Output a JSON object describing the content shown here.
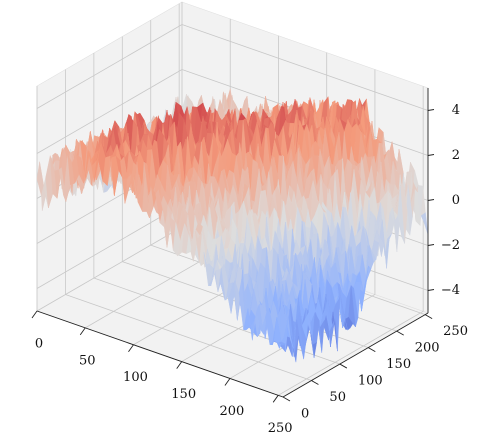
{
  "chart_data": {
    "type": "surface",
    "title": "",
    "xlabel": "",
    "ylabel": "",
    "zlabel": "",
    "colormap": "coolwarm",
    "colors": {
      "low": "#3b4cc0",
      "mid": "#dddddd",
      "high": "#b40426",
      "pane": "#f2f2f2",
      "grid": "#c8c8c8"
    },
    "grid": true,
    "x_range": [
      0,
      255
    ],
    "y_range": [
      0,
      255
    ],
    "z_range": [
      -5,
      5
    ],
    "x_ticks": [
      0,
      50,
      100,
      150,
      200,
      250
    ],
    "y_ticks": [
      0,
      50,
      100,
      150,
      200,
      250
    ],
    "z_ticks": [
      -4,
      -2,
      0,
      2,
      4
    ],
    "x_tick_labels": [
      "0",
      "50",
      "100",
      "150",
      "200",
      "250"
    ],
    "y_tick_labels": [
      "0",
      "50",
      "100",
      "150",
      "200",
      "250"
    ],
    "z_tick_labels": [
      "−4",
      "−2",
      "0",
      "2",
      "4"
    ],
    "surface_grid": {
      "x": [
        0,
        32,
        64,
        96,
        128,
        160,
        192,
        224,
        255
      ],
      "y": [
        0,
        32,
        64,
        96,
        128,
        160,
        192,
        224,
        255
      ],
      "z_rows_by_y": [
        [
          0.5,
          1.5,
          2.5,
          2.0,
          1.0,
          0.0,
          -1.0,
          -2.0,
          -2.5
        ],
        [
          0.5,
          1.8,
          3.0,
          2.5,
          1.2,
          0.2,
          -1.0,
          -2.2,
          -2.8
        ],
        [
          0.3,
          1.5,
          2.8,
          3.5,
          2.0,
          0.5,
          -0.8,
          -2.0,
          -3.0
        ],
        [
          0.0,
          1.0,
          2.0,
          3.5,
          3.0,
          1.5,
          -0.5,
          -2.0,
          -3.2
        ],
        [
          -0.5,
          0.5,
          1.5,
          2.5,
          3.0,
          2.5,
          0.5,
          -1.5,
          -3.0
        ],
        [
          -0.8,
          0.0,
          1.0,
          1.5,
          2.5,
          3.0,
          1.5,
          -0.5,
          -2.0
        ],
        [
          -0.5,
          0.0,
          0.5,
          1.0,
          2.0,
          3.0,
          2.5,
          0.5,
          -0.5
        ],
        [
          0.0,
          0.2,
          0.5,
          1.0,
          1.5,
          2.5,
          3.0,
          1.5,
          0.0
        ],
        [
          0.0,
          0.5,
          1.0,
          1.0,
          1.5,
          2.0,
          2.5,
          1.0,
          -0.5
        ]
      ],
      "noise_amplitude": 1.2
    }
  }
}
